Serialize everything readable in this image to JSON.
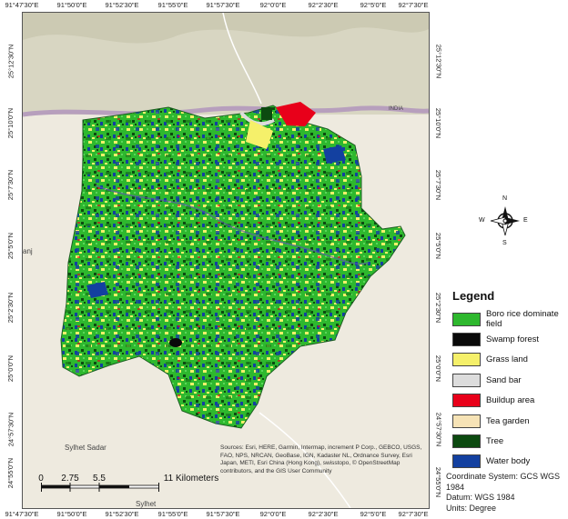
{
  "map": {
    "top_ticks": [
      "91°47'30\"E",
      "91°50'0\"E",
      "91°52'30\"E",
      "91°55'0\"E",
      "91°57'30\"E",
      "92°0'0\"E",
      "92°2'30\"E",
      "92°5'0\"E",
      "92°7'30\"E"
    ],
    "bottom_ticks": [
      "91°47'30\"E",
      "91°50'0\"E",
      "91°52'30\"E",
      "91°55'0\"E",
      "91°57'30\"E",
      "92°0'0\"E",
      "92°2'30\"E",
      "92°5'0\"E",
      "92°7'30\"E"
    ],
    "left_ticks": [
      "25°12'30\"N",
      "25°10'0\"N",
      "25°7'30\"N",
      "25°5'0\"N",
      "25°2'30\"N",
      "25°0'0\"N",
      "24°57'30\"N",
      "24°55'0\"N"
    ],
    "right_ticks": [
      "25°12'30\"N",
      "25°10'0\"N",
      "25°7'30\"N",
      "25°5'0\"N",
      "25°2'30\"N",
      "25°0'0\"N",
      "24°57'30\"N",
      "24°55'0\"N"
    ],
    "place_labels": {
      "sylhet_sadar": "Sylhet Sadar",
      "sylhet": "Sylhet",
      "india": "INDIA",
      "partial_left": "anj"
    }
  },
  "compass": {
    "n": "N",
    "s": "S",
    "e": "E",
    "w": "W"
  },
  "legend": {
    "title": "Legend",
    "items": [
      {
        "label": "Boro rice dominate field",
        "color": "#2eb82e"
      },
      {
        "label": "Swamp forest",
        "color": "#0a0a0a"
      },
      {
        "label": "Grass land",
        "color": "#f5f06a"
      },
      {
        "label": "Sand bar",
        "color": "#dcdcdc"
      },
      {
        "label": "Buildup area",
        "color": "#e8001a"
      },
      {
        "label": "Tea garden",
        "color": "#f6e3b6"
      },
      {
        "label": "Tree",
        "color": "#0c4a10"
      },
      {
        "label": "Water body",
        "color": "#1340a0"
      }
    ]
  },
  "scale": {
    "labels": [
      "0",
      "2.75",
      "5.5",
      "11 Kilometers"
    ]
  },
  "credits": "Sources: Esri, HERE, Garmin, Intermap, increment P Corp., GEBCO, USGS, FAO, NPS, NRCAN, GeoBase, IGN, Kadaster NL, Ordnance Survey, Esri Japan, METI, Esri China (Hong Kong), swisstopo, © OpenStreetMap contributors, and the GIS User Community",
  "coordinate_info": {
    "system": "Coordinate System: GCS WGS 1984",
    "datum": "Datum: WGS 1984",
    "units": "Units: Degree"
  }
}
